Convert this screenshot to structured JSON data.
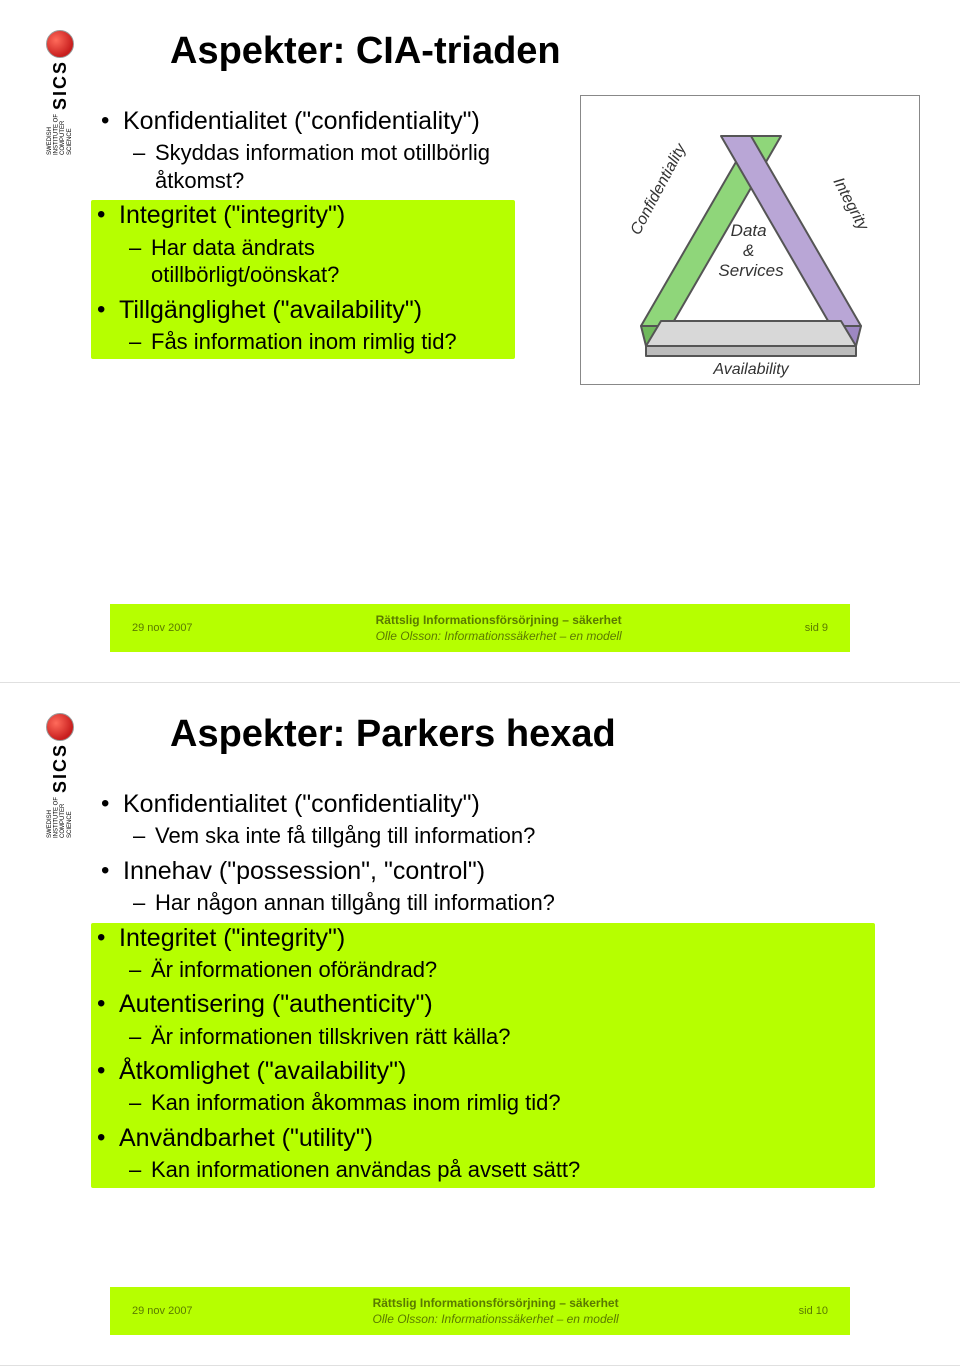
{
  "logo": {
    "brand": "SICS",
    "sub_l1": "SWEDISH",
    "sub_l2": "INSTITUTE OF",
    "sub_l3": "COMPUTER",
    "sub_l4": "SCIENCE"
  },
  "colors": {
    "highlight": "#b6ff00",
    "footer_text": "#5a7a00",
    "title_text": "#000000",
    "body_text": "#000000",
    "diagram_border": "#888888",
    "triangle_green": "#8fd67a",
    "triangle_purple": "#b9a6d6",
    "triangle_gray": "#d0d0d0",
    "triangle_edge": "#555555"
  },
  "fonts": {
    "title_size_pt": 28,
    "body_size_pt": 19,
    "sub_size_pt": 16,
    "footer_size_pt": 9
  },
  "slide1": {
    "title": "Aspekter: CIA-triaden",
    "items": [
      {
        "level": 1,
        "text": "Konfidentialitet (\"confidentiality\")",
        "hl": false
      },
      {
        "level": 2,
        "text": "Skyddas information mot otillbörlig åtkomst?",
        "hl": false
      },
      {
        "level": 1,
        "text": "Integritet (\"integrity\")",
        "hl": true
      },
      {
        "level": 2,
        "text": "Har data ändrats otillbörligt/oönskat?",
        "hl": true
      },
      {
        "level": 1,
        "text": "Tillgänglighet (\"availability\")",
        "hl": true
      },
      {
        "level": 2,
        "text": "Fås information inom rimlig tid?",
        "hl": true
      }
    ],
    "diagram": {
      "label_conf": "Confidentiality",
      "label_int": "Integrity",
      "label_avail": "Availability",
      "center_l1": "Data",
      "center_l2": "&",
      "center_l3": "Services"
    },
    "footer": {
      "date": "29 nov 2007",
      "line1": "Rättslig Informationsförsörjning – säkerhet",
      "line2": "Olle Olsson: Informationssäkerhet – en modell",
      "page": "sid 9"
    }
  },
  "slide2": {
    "title": "Aspekter: Parkers hexad",
    "items": [
      {
        "level": 1,
        "text": "Konfidentialitet (\"confidentiality\")",
        "hl": false
      },
      {
        "level": 2,
        "text": "Vem ska inte få tillgång till information?",
        "hl": false
      },
      {
        "level": 1,
        "text": "Innehav (\"possession\", \"control\")",
        "hl": false
      },
      {
        "level": 2,
        "text": "Har någon annan tillgång till information?",
        "hl": false
      },
      {
        "level": 1,
        "text": "Integritet (\"integrity\")",
        "hl": true
      },
      {
        "level": 2,
        "text": "Är informationen oförändrad?",
        "hl": true
      },
      {
        "level": 1,
        "text": "Autentisering (\"authenticity\")",
        "hl": true
      },
      {
        "level": 2,
        "text": "Är informationen tillskriven rätt källa?",
        "hl": true
      },
      {
        "level": 1,
        "text": "Åtkomlighet (\"availability\")",
        "hl": true
      },
      {
        "level": 2,
        "text": "Kan information åkommas inom rimlig tid?",
        "hl": true
      },
      {
        "level": 1,
        "text": "Användbarhet (\"utility\")",
        "hl": true
      },
      {
        "level": 2,
        "text": "Kan informationen användas på avsett sätt?",
        "hl": true
      }
    ],
    "footer": {
      "date": "29 nov 2007",
      "line1": "Rättslig Informationsförsörjning – säkerhet",
      "line2": "Olle Olsson: Informationssäkerhet – en modell",
      "page": "sid 10"
    }
  }
}
